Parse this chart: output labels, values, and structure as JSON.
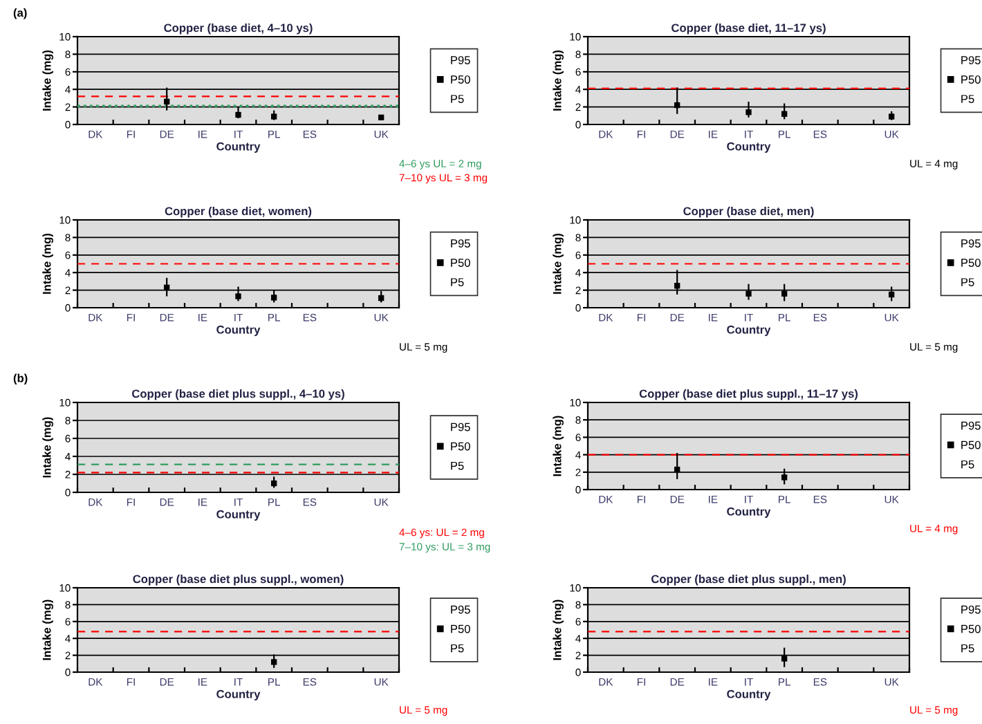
{
  "chart_data": [
    {
      "type": "scatter",
      "title": "Copper (base diet, 4–10 ys)",
      "xlabel": "Country",
      "ylabel": "Intake (mg)",
      "categories": [
        "DK",
        "FI",
        "DE",
        "IE",
        "IT",
        "PL",
        "ES",
        null,
        "UK"
      ],
      "ylim": [
        0,
        10
      ],
      "yticks": [
        0,
        2,
        4,
        6,
        8,
        10
      ],
      "grid": "y",
      "legend": "right",
      "series": [
        {
          "name": "P50",
          "color": "#000000",
          "values": [
            null,
            null,
            2.6,
            null,
            1.1,
            0.9,
            null,
            null,
            0.8
          ],
          "errors": [
            null,
            null,
            [
              1.6,
              4.2
            ],
            null,
            [
              0.7,
              2.0
            ],
            [
              0.5,
              1.6
            ],
            null,
            null,
            [
              0.5,
              1.1
            ]
          ]
        }
      ],
      "ref_lines": [
        {
          "axis": "y",
          "value": 2.1,
          "label": "4–6 ys UL = 2 mg",
          "color": "#2e9b5e",
          "line_style": "dotted"
        },
        {
          "axis": "y",
          "value": 3.2,
          "label": "7–10 ys UL = 3 mg",
          "color": "#ff0000",
          "line_style": "dashed"
        }
      ],
      "annotations": [
        "P95",
        "P5",
        "(a)"
      ]
    },
    {
      "type": "scatter",
      "title": "Copper (base diet, 11–17 ys)",
      "xlabel": "Country",
      "ylabel": "Intake (mg)",
      "categories": [
        "DK",
        "FI",
        "DE",
        "IE",
        "IT",
        "PL",
        "ES",
        null,
        "UK"
      ],
      "ylim": [
        0,
        10
      ],
      "yticks": [
        0,
        2,
        4,
        6,
        8,
        10
      ],
      "grid": "y",
      "legend": "right",
      "series": [
        {
          "name": "P50",
          "color": "#000000",
          "values": [
            null,
            null,
            2.2,
            null,
            1.4,
            1.2,
            null,
            null,
            0.9
          ],
          "errors": [
            null,
            null,
            [
              1.2,
              4.2
            ],
            null,
            [
              0.8,
              2.6
            ],
            [
              0.6,
              2.4
            ],
            null,
            null,
            [
              0.5,
              1.5
            ]
          ]
        }
      ],
      "ref_lines": [
        {
          "axis": "y",
          "value": 4.1,
          "label": null,
          "color": "#ff0000",
          "line_style": "dashed"
        }
      ],
      "annotations": [
        "P95",
        "P5",
        "UL = 4 mg"
      ]
    },
    {
      "type": "scatter",
      "title": "Copper (base diet, women)",
      "xlabel": "Country",
      "ylabel": "Intake (mg)",
      "categories": [
        "DK",
        "FI",
        "DE",
        "IE",
        "IT",
        "PL",
        "ES",
        null,
        "UK"
      ],
      "ylim": [
        0,
        10
      ],
      "yticks": [
        0,
        2,
        4,
        6,
        8,
        10
      ],
      "grid": "y",
      "legend": "right",
      "series": [
        {
          "name": "P50",
          "color": "#000000",
          "values": [
            null,
            null,
            2.3,
            null,
            1.3,
            1.15,
            null,
            null,
            1.1
          ],
          "errors": [
            null,
            null,
            [
              1.3,
              3.4
            ],
            null,
            [
              0.75,
              2.4
            ],
            [
              0.6,
              2.0
            ],
            null,
            null,
            [
              0.6,
              1.9
            ]
          ]
        }
      ],
      "ref_lines": [
        {
          "axis": "y",
          "value": 5.0,
          "label": null,
          "color": "#ff0000",
          "line_style": "dashed"
        }
      ],
      "annotations": [
        "P95",
        "P5",
        "UL = 5 mg"
      ]
    },
    {
      "type": "scatter",
      "title": "Copper (base diet, men)",
      "xlabel": "Country",
      "ylabel": "Intake (mg)",
      "categories": [
        "DK",
        "FI",
        "DE",
        "IE",
        "IT",
        "PL",
        "ES",
        null,
        "UK"
      ],
      "ylim": [
        0,
        10
      ],
      "yticks": [
        0,
        2,
        4,
        6,
        8,
        10
      ],
      "grid": "y",
      "legend": "right",
      "series": [
        {
          "name": "P50",
          "color": "#000000",
          "values": [
            null,
            null,
            2.5,
            null,
            1.6,
            1.6,
            null,
            null,
            1.5
          ],
          "errors": [
            null,
            null,
            [
              1.5,
              4.3
            ],
            null,
            [
              0.9,
              2.7
            ],
            [
              0.75,
              2.7
            ],
            null,
            null,
            [
              0.75,
              2.4
            ]
          ]
        }
      ],
      "ref_lines": [
        {
          "axis": "y",
          "value": 5.0,
          "label": null,
          "color": "#ff0000",
          "line_style": "dashed"
        }
      ],
      "annotations": [
        "P95",
        "P5",
        "UL = 5 mg"
      ]
    },
    {
      "type": "scatter",
      "title": "Copper (base diet plus suppl., 4–10 ys)",
      "xlabel": "Country",
      "ylabel": "Intake (mg)",
      "categories": [
        "DK",
        "FI",
        "DE",
        "IE",
        "IT",
        "PL",
        "ES",
        null,
        "UK"
      ],
      "ylim": [
        0,
        10
      ],
      "yticks": [
        0,
        2,
        4,
        6,
        8,
        10
      ],
      "grid": "y",
      "legend": "right",
      "series": [
        {
          "name": "P50",
          "color": "#000000",
          "values": [
            null,
            null,
            null,
            null,
            null,
            1.0,
            null,
            null,
            null
          ],
          "errors": [
            null,
            null,
            null,
            null,
            null,
            [
              0.5,
              1.75
            ],
            null,
            null,
            null
          ]
        }
      ],
      "ref_lines": [
        {
          "axis": "y",
          "value": 2.2,
          "label": "4–6 ys: UL = 2 mg",
          "color": "#ff0000",
          "line_style": "dashed"
        },
        {
          "axis": "y",
          "value": 3.1,
          "label": "7–10 ys: UL = 3 mg",
          "color": "#2e9b5e",
          "line_style": "dashed"
        }
      ],
      "annotations": [
        "P95",
        "P5",
        "(b)"
      ]
    },
    {
      "type": "scatter",
      "title": "Copper (base diet plus suppl., 11–17 ys)",
      "xlabel": "Country",
      "ylabel": "Intake (mg)",
      "categories": [
        "DK",
        "FI",
        "DE",
        "IE",
        "IT",
        "PL",
        "ES",
        null,
        "UK"
      ],
      "ylim": [
        0,
        10
      ],
      "yticks": [
        0,
        2,
        4,
        6,
        8,
        10
      ],
      "grid": "y",
      "legend": "right",
      "series": [
        {
          "name": "P50",
          "color": "#000000",
          "values": [
            null,
            null,
            2.3,
            null,
            null,
            1.4,
            null,
            null,
            null
          ],
          "errors": [
            null,
            null,
            [
              1.2,
              4.2
            ],
            null,
            null,
            [
              0.6,
              2.4
            ],
            null,
            null,
            null
          ]
        }
      ],
      "ref_lines": [
        {
          "axis": "y",
          "value": 4.0,
          "label": "UL = 4 mg",
          "color": "#ff0000",
          "line_style": "dashed"
        }
      ],
      "annotations": [
        "P95",
        "P5"
      ]
    },
    {
      "type": "scatter",
      "title": "Copper (base diet plus suppl., women)",
      "xlabel": "Country",
      "ylabel": "Intake (mg)",
      "categories": [
        "DK",
        "FI",
        "DE",
        "IE",
        "IT",
        "PL",
        "ES",
        null,
        "UK"
      ],
      "ylim": [
        0,
        10
      ],
      "yticks": [
        0,
        2,
        4,
        6,
        8,
        10
      ],
      "grid": "y",
      "legend": "right",
      "series": [
        {
          "name": "P50",
          "color": "#000000",
          "values": [
            null,
            null,
            null,
            null,
            null,
            1.2,
            null,
            null,
            null
          ],
          "errors": [
            null,
            null,
            null,
            null,
            null,
            [
              0.5,
              2.1
            ],
            null,
            null,
            null
          ]
        }
      ],
      "ref_lines": [
        {
          "axis": "y",
          "value": 4.8,
          "label": "UL = 5 mg",
          "color": "#ff0000",
          "line_style": "dashed"
        }
      ],
      "annotations": [
        "P95",
        "P5"
      ]
    },
    {
      "type": "scatter",
      "title": "Copper (base diet plus suppl., men)",
      "xlabel": "Country",
      "ylabel": "Intake (mg)",
      "categories": [
        "DK",
        "FI",
        "DE",
        "IE",
        "IT",
        "PL",
        "ES",
        null,
        "UK"
      ],
      "ylim": [
        0,
        10
      ],
      "yticks": [
        0,
        2,
        4,
        6,
        8,
        10
      ],
      "grid": "y",
      "legend": "right",
      "series": [
        {
          "name": "P50",
          "color": "#000000",
          "values": [
            null,
            null,
            null,
            null,
            null,
            1.6,
            null,
            null,
            null
          ],
          "errors": [
            null,
            null,
            null,
            null,
            null,
            [
              0.6,
              2.9
            ],
            null,
            null,
            null
          ]
        }
      ],
      "ref_lines": [
        {
          "axis": "y",
          "value": 4.8,
          "label": "UL = 5 mg",
          "color": "#ff0000",
          "line_style": "dashed"
        }
      ],
      "annotations": [
        "P95",
        "P5"
      ]
    }
  ]
}
